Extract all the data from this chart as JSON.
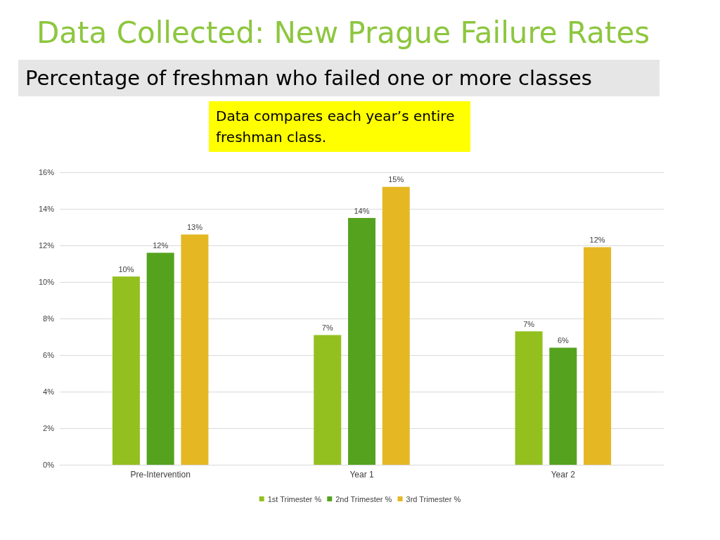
{
  "chart_data": {
    "type": "bar",
    "title": "Data Collected: New Prague Failure Rates",
    "subtitle": "Percentage of freshman who failed one or more classes",
    "annotations": [
      "Data compares each year’s entire freshman class."
    ],
    "categories": [
      "Pre-Intervention",
      "Year 1",
      "Year 2"
    ],
    "series": [
      {
        "name": "1st Trimester %",
        "color": "#93c01f",
        "values": [
          10.3,
          7.1,
          7.3
        ],
        "value_labels": [
          "10%",
          "7%",
          "7%"
        ]
      },
      {
        "name": "2nd Trimester %",
        "color": "#55a21f",
        "values": [
          11.6,
          13.5,
          6.4
        ],
        "value_labels": [
          "12%",
          "14%",
          "6%"
        ]
      },
      {
        "name": "3rd Trimester %",
        "color": "#e5b723",
        "values": [
          12.6,
          15.2,
          11.9
        ],
        "value_labels": [
          "13%",
          "15%",
          "12%"
        ]
      }
    ],
    "ylim": [
      0,
      16
    ],
    "yticks": [
      {
        "value": 0,
        "label": "0%"
      },
      {
        "value": 2,
        "label": "2%"
      },
      {
        "value": 4,
        "label": "4%"
      },
      {
        "value": 6,
        "label": "6%"
      },
      {
        "value": 8,
        "label": "8%"
      },
      {
        "value": 10,
        "label": "10%"
      },
      {
        "value": 12,
        "label": "12%"
      },
      {
        "value": 14,
        "label": "14%"
      },
      {
        "value": 16,
        "label": "16%"
      }
    ],
    "grid": "y",
    "legend": "bottom",
    "marker": "square"
  }
}
